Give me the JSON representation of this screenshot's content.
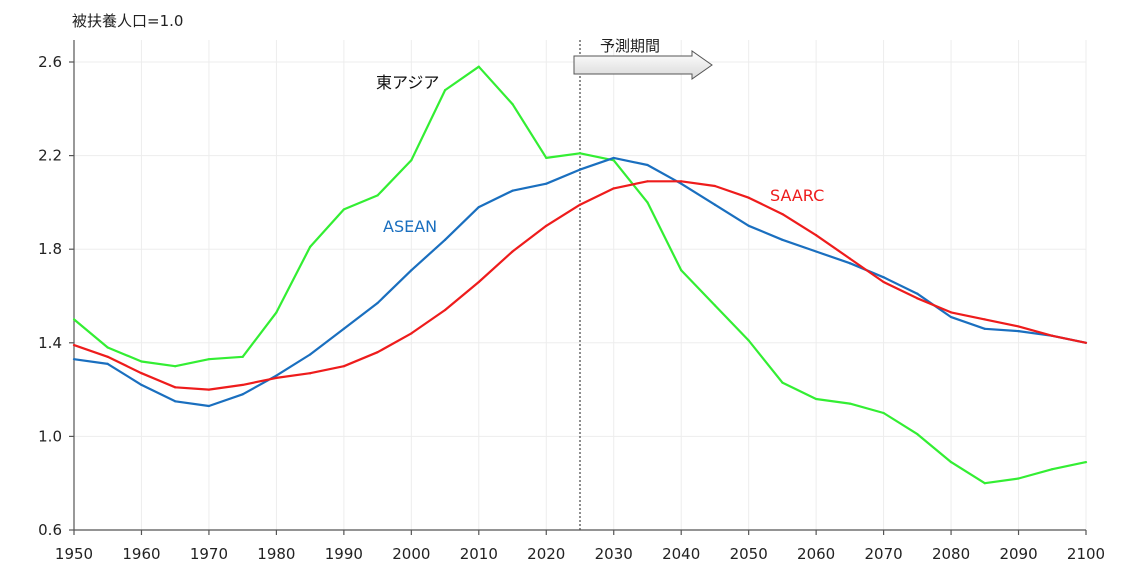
{
  "chart_data": {
    "type": "line",
    "unit_label": "被扶養人口=1.0",
    "forecast_label": "予測期間",
    "forecast_start": 2025,
    "xlim": [
      1950,
      2100
    ],
    "ylim": [
      0.6,
      2.7
    ],
    "x_ticks": [
      1950,
      1960,
      1970,
      1980,
      1990,
      2000,
      2010,
      2020,
      2030,
      2040,
      2050,
      2060,
      2070,
      2080,
      2090,
      2100
    ],
    "y_ticks": [
      0.6,
      1.0,
      1.4,
      1.8,
      2.2,
      2.6
    ],
    "y_tick_labels": [
      "0.6",
      "1.0",
      "1.4",
      "1.8",
      "2.2",
      "2.6"
    ],
    "grid": true,
    "x": [
      1950,
      1955,
      1960,
      1965,
      1970,
      1975,
      1980,
      1985,
      1990,
      1995,
      2000,
      2005,
      2010,
      2015,
      2020,
      2025,
      2030,
      2035,
      2040,
      2045,
      2050,
      2055,
      2060,
      2065,
      2070,
      2075,
      2080,
      2085,
      2090,
      2095,
      2100
    ],
    "series": [
      {
        "name": "東アジア",
        "color": "#33ee33",
        "values": [
          1.5,
          1.38,
          1.32,
          1.3,
          1.33,
          1.34,
          1.53,
          1.81,
          1.97,
          2.03,
          2.18,
          2.48,
          2.58,
          2.42,
          2.19,
          2.21,
          2.18,
          2.0,
          1.71,
          1.56,
          1.41,
          1.23,
          1.16,
          1.14,
          1.1,
          1.01,
          0.89,
          0.8,
          0.82,
          0.86,
          0.89
        ]
      },
      {
        "name": "ASEAN",
        "color": "#1a6fbf",
        "values": [
          1.33,
          1.31,
          1.22,
          1.15,
          1.13,
          1.18,
          1.26,
          1.35,
          1.46,
          1.57,
          1.71,
          1.84,
          1.98,
          2.05,
          2.08,
          2.14,
          2.19,
          2.16,
          2.08,
          1.99,
          1.9,
          1.84,
          1.79,
          1.74,
          1.68,
          1.61,
          1.51,
          1.46,
          1.45,
          1.43,
          1.4
        ]
      },
      {
        "name": "SAARC",
        "color": "#ee1c1c",
        "values": [
          1.39,
          1.34,
          1.27,
          1.21,
          1.2,
          1.22,
          1.25,
          1.27,
          1.3,
          1.36,
          1.44,
          1.54,
          1.66,
          1.79,
          1.9,
          1.99,
          2.06,
          2.09,
          2.09,
          2.07,
          2.02,
          1.95,
          1.86,
          1.76,
          1.66,
          1.59,
          1.53,
          1.5,
          1.47,
          1.43,
          1.4
        ]
      }
    ]
  }
}
